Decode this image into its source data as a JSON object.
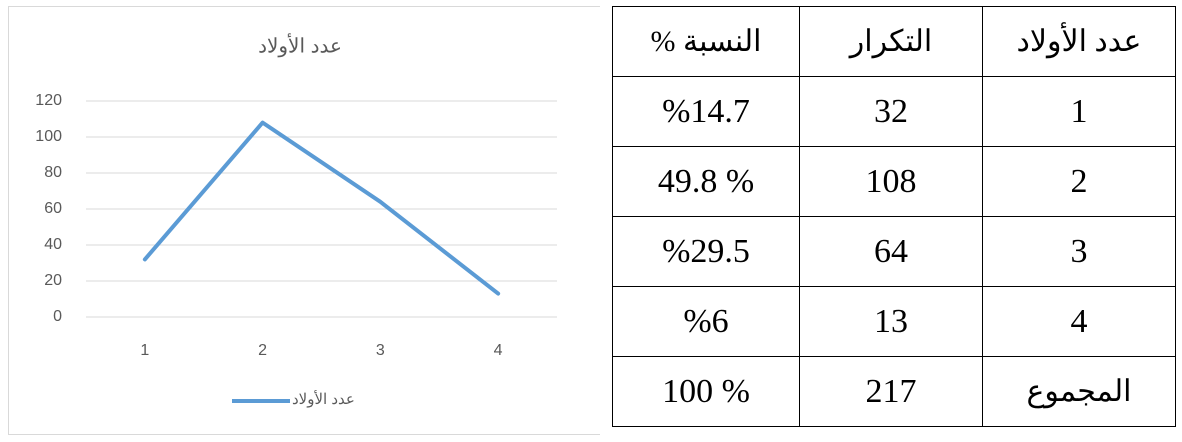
{
  "chart_data": {
    "type": "line",
    "title": "عدد الأولاد",
    "categories": [
      "1",
      "2",
      "3",
      "4"
    ],
    "series": [
      {
        "name": "عدد الأولاد",
        "color": "#5b9bd5",
        "values": [
          32,
          108,
          64,
          13
        ]
      }
    ],
    "ylim": [
      0,
      120
    ],
    "yticks": [
      0,
      20,
      40,
      60,
      80,
      100,
      120
    ],
    "grid": true,
    "legend": "bottom"
  },
  "table": {
    "header": [
      "عدد الأولاد",
      "التكرار",
      "النسبة %"
    ],
    "rows": [
      [
        "1",
        "32",
        "%14.7"
      ],
      [
        "2",
        "108",
        "% 49.8"
      ],
      [
        "3",
        "64",
        "%29.5"
      ],
      [
        "4",
        "13",
        "%6"
      ],
      [
        "المجموع",
        "217",
        "% 100"
      ]
    ]
  }
}
